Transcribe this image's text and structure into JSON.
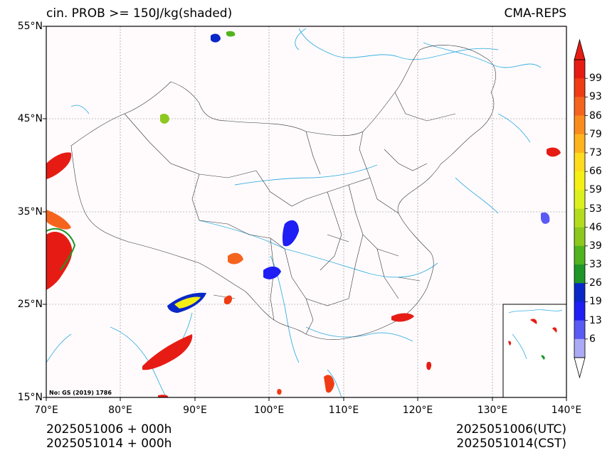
{
  "title_left": "cin. PROB >= 150J/kg(shaded)",
  "title_right": "CMA-REPS",
  "lat_labels": [
    "55°N",
    "45°N",
    "35°N",
    "25°N",
    "15°N"
  ],
  "lon_labels": [
    "70°E",
    "80°E",
    "90°E",
    "100°E",
    "110°E",
    "120°E",
    "130°E",
    "140°E"
  ],
  "footer_left": [
    "2025051006  +  000h",
    "2025051014  +  000h"
  ],
  "footer_right": [
    "2025051006(UTC)",
    "2025051014(CST)"
  ],
  "map_note": "No: GS (2019) 1786",
  "colorbar": {
    "labels": [
      "99",
      "93",
      "86",
      "79",
      "73",
      "66",
      "59",
      "53",
      "46",
      "39",
      "33",
      "26",
      "19",
      "13",
      "6"
    ],
    "colors": [
      "#e61c14",
      "#f03c14",
      "#f5641e",
      "#fa8c1e",
      "#ffb41e",
      "#ffdc1e",
      "#f5f014",
      "#dcf01e",
      "#b4dc1e",
      "#8cc81e",
      "#50b41e",
      "#1e9628",
      "#0a28c8",
      "#1e1ef5",
      "#5a5af5",
      "#aaaaf5"
    ]
  },
  "colors": {
    "background": "#fffbfd",
    "border": "#333333",
    "rivers": "#3ab0e0",
    "grid": "#888888"
  }
}
